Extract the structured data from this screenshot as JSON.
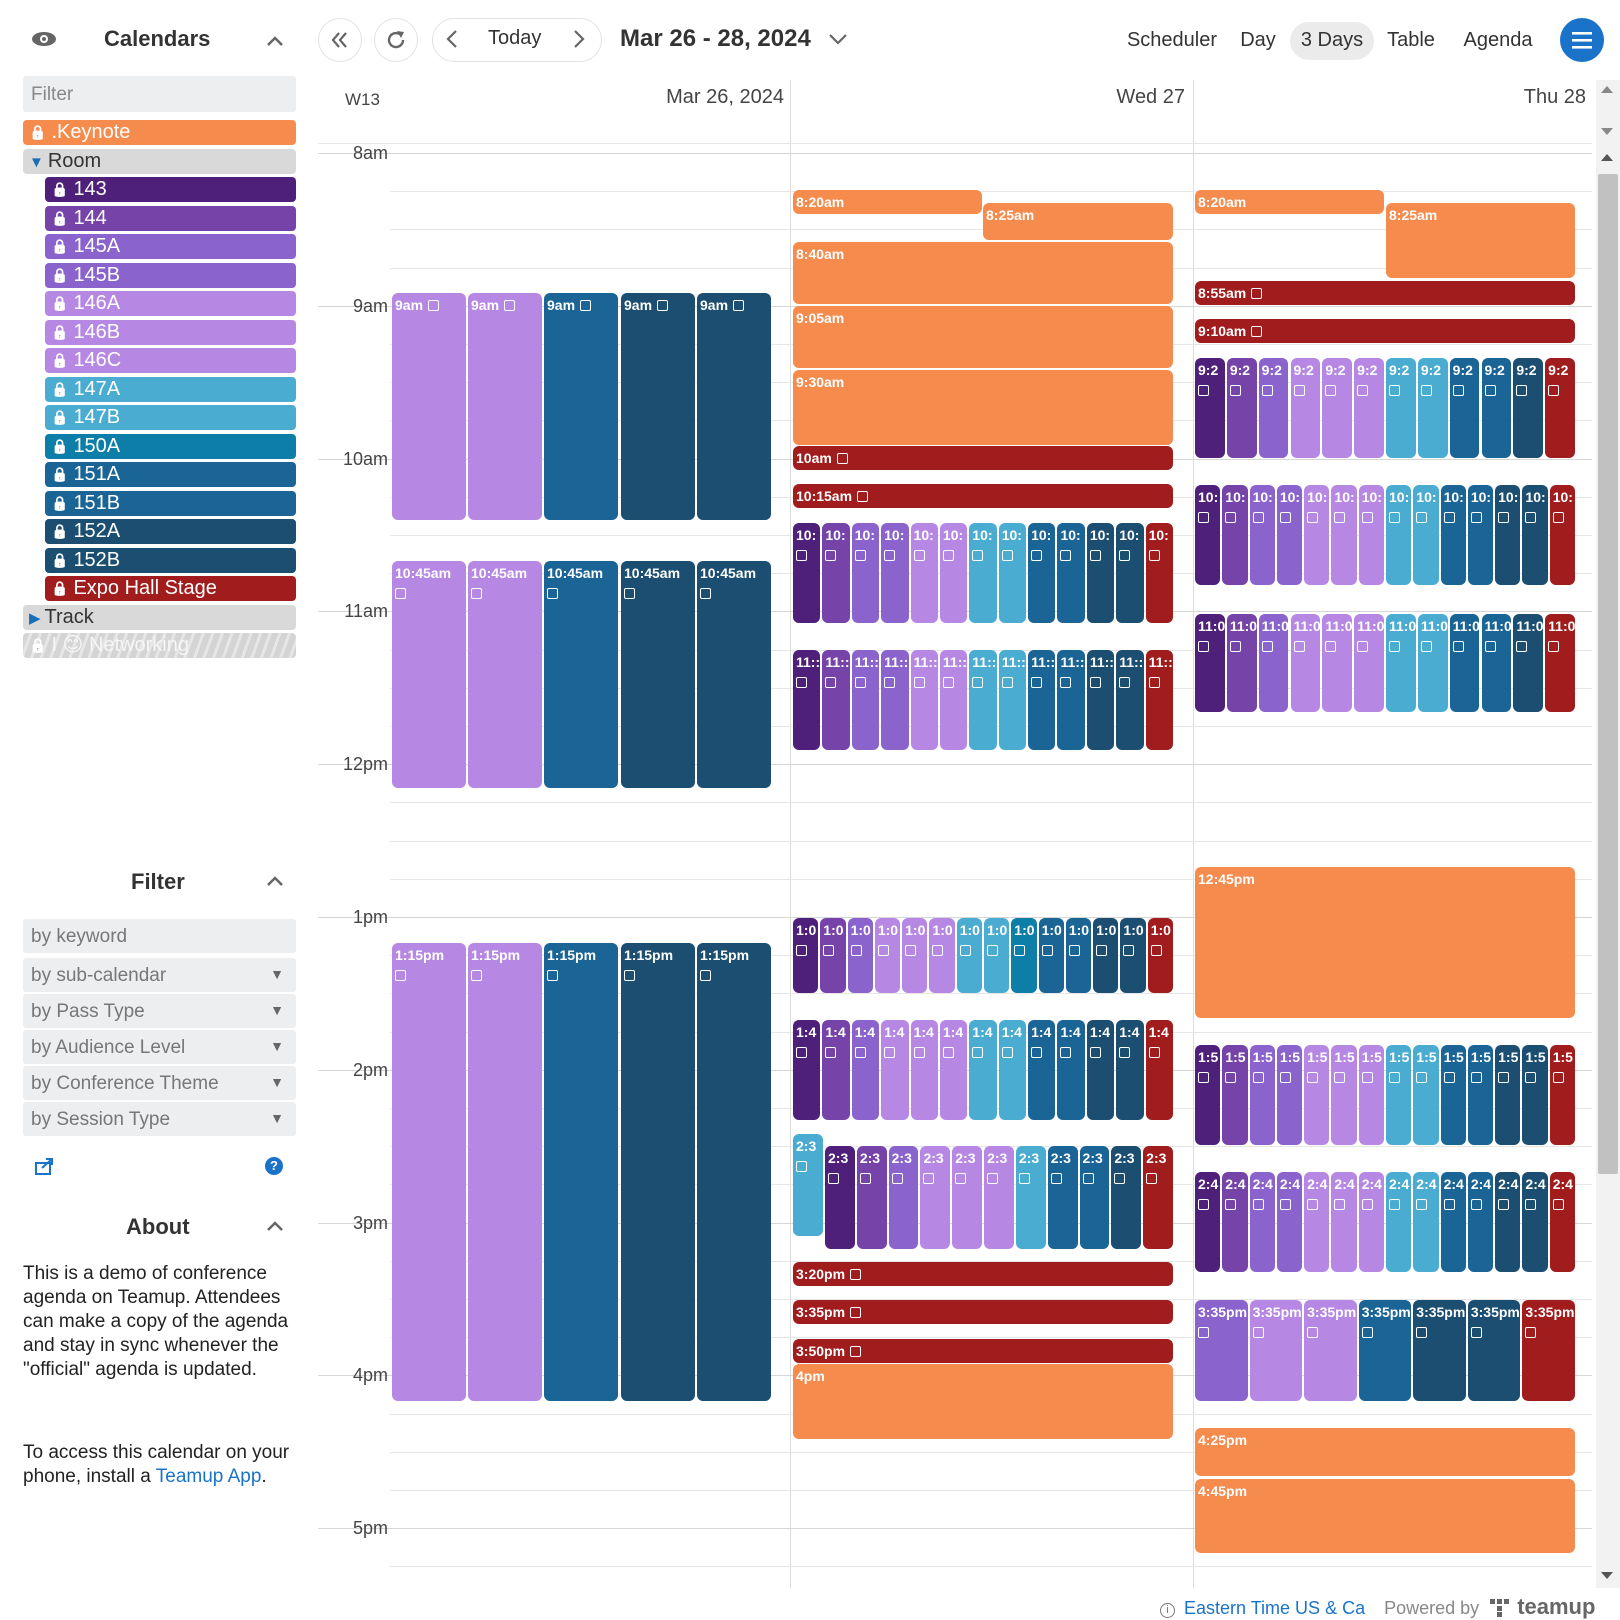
{
  "sidebar": {
    "calendars_title": "Calendars",
    "filter_placeholder": "Filter",
    "calendars": [
      {
        "label": ".Keynote",
        "color": "#f58b4c",
        "indent": 0
      },
      {
        "label": "Room",
        "group": true,
        "expanded": true
      },
      {
        "label": "143",
        "color": "#4f2079",
        "indent": 1
      },
      {
        "label": "144",
        "color": "#7643a9",
        "indent": 1
      },
      {
        "label": "145A",
        "color": "#8a63cc",
        "indent": 1
      },
      {
        "label": "145B",
        "color": "#8a63cc",
        "indent": 1
      },
      {
        "label": "146A",
        "color": "#b688e4",
        "indent": 1
      },
      {
        "label": "146B",
        "color": "#b688e4",
        "indent": 1
      },
      {
        "label": "146C",
        "color": "#b688e4",
        "indent": 1
      },
      {
        "label": "147A",
        "color": "#4aacd0",
        "indent": 1
      },
      {
        "label": "147B",
        "color": "#4aacd0",
        "indent": 1
      },
      {
        "label": "150A",
        "color": "#0d7ea8",
        "indent": 1
      },
      {
        "label": "151A",
        "color": "#1a6596",
        "indent": 1
      },
      {
        "label": "151B",
        "color": "#1a6596",
        "indent": 1
      },
      {
        "label": "152A",
        "color": "#1b4e70",
        "indent": 1
      },
      {
        "label": "152B",
        "color": "#1b4e70",
        "indent": 1
      },
      {
        "label": "Expo Hall Stage",
        "color": "#a11c1c",
        "indent": 1
      },
      {
        "label": "Track",
        "group": true,
        "expanded": false
      },
      {
        "label": "I 😊 Networking",
        "color": "#d4d4d4",
        "indent": 0,
        "disabled": true
      }
    ],
    "filter_title": "Filter",
    "keyword_placeholder": "by keyword",
    "filters": [
      "by sub-calendar",
      "by Pass Type",
      "by Audience Level",
      "by Conference Theme",
      "by Session Type"
    ],
    "about_title": "About",
    "about_p1": "This is a demo of conference agenda on Teamup. Attendees can make a copy of the agenda and stay in sync whenever the \"official\" agenda is updated.",
    "about_p2_prefix": "To access this calendar on your phone, install a",
    "about_link": "Teamup App",
    "about_p2_suffix": "."
  },
  "toolbar": {
    "today": "Today",
    "range": "Mar 26 - 28, 2024",
    "views": [
      "Scheduler",
      "Day",
      "3 Days",
      "Table",
      "Agenda"
    ],
    "active_view": "3 Days",
    "accent": "#1a73c9"
  },
  "grid": {
    "week": "W13",
    "days": [
      "Mar 26, 2024",
      "Wed 27",
      "Thu 28"
    ],
    "hours": [
      "8am",
      "9am",
      "10am",
      "11am",
      "12pm",
      "1pm",
      "2pm",
      "3pm",
      "4pm",
      "5pm"
    ]
  },
  "colors": {
    "orange": "#f58b4c",
    "c143": "#4f2079",
    "c144": "#7643a9",
    "c145": "#8a63cc",
    "c146": "#b688e4",
    "c147": "#4aacd0",
    "c150": "#0d7ea8",
    "c151": "#1a6596",
    "c152": "#1b4e70",
    "red": "#a11c1c"
  },
  "events": {
    "day1": [
      {
        "label": "9am",
        "start": "9:00",
        "end": "10:30",
        "color": "c146",
        "copy": "inline"
      },
      {
        "label": "9am",
        "start": "9:00",
        "end": "10:30",
        "color": "c146",
        "copy": "inline"
      },
      {
        "label": "9am",
        "start": "9:00",
        "end": "10:30",
        "color": "c151",
        "copy": "inline"
      },
      {
        "label": "9am",
        "start": "9:00",
        "end": "10:30",
        "color": "c152",
        "copy": "inline"
      },
      {
        "label": "9am",
        "start": "9:00",
        "end": "10:30",
        "color": "c152",
        "copy": "inline"
      },
      {
        "label": "10:45am",
        "start": "10:45",
        "end": "12:15",
        "color": "c146"
      },
      {
        "label": "10:45am",
        "start": "10:45",
        "end": "12:15",
        "color": "c146"
      },
      {
        "label": "10:45am",
        "start": "10:45",
        "end": "12:15",
        "color": "c151"
      },
      {
        "label": "10:45am",
        "start": "10:45",
        "end": "12:15",
        "color": "c152"
      },
      {
        "label": "10:45am",
        "start": "10:45",
        "end": "12:15",
        "color": "c152"
      },
      {
        "label": "1:15pm",
        "start": "13:15",
        "end": "16:15",
        "color": "c146"
      },
      {
        "label": "1:15pm",
        "start": "13:15",
        "end": "16:15",
        "color": "c146"
      },
      {
        "label": "1:15pm",
        "start": "13:15",
        "end": "16:15",
        "color": "c151"
      },
      {
        "label": "1:15pm",
        "start": "13:15",
        "end": "16:15",
        "color": "c152"
      },
      {
        "label": "1:15pm",
        "start": "13:15",
        "end": "16:15",
        "color": "c152"
      }
    ],
    "day2_singles": [
      {
        "label": "8:20am",
        "color": "orange"
      },
      {
        "label": "8:25am",
        "color": "orange"
      },
      {
        "label": "8:40am",
        "color": "orange"
      },
      {
        "label": "9:05am",
        "color": "orange"
      },
      {
        "label": "9:30am",
        "color": "orange"
      },
      {
        "label": "10am",
        "color": "red",
        "copy": "inline"
      },
      {
        "label": "10:15am",
        "color": "red",
        "copy": "inline"
      },
      {
        "label": "3:20pm",
        "color": "red",
        "copy": "inline"
      },
      {
        "label": "3:35pm",
        "color": "red",
        "copy": "inline"
      },
      {
        "label": "3:50pm",
        "color": "red",
        "copy": "inline"
      },
      {
        "label": "4pm",
        "color": "orange"
      }
    ],
    "day2_blocks": [
      {
        "label": "10:",
        "colors": [
          "c143",
          "c144",
          "c145",
          "c145",
          "c146",
          "c146",
          "c147",
          "c147",
          "c151",
          "c151",
          "c152",
          "c152",
          "red"
        ]
      },
      {
        "label": "11::",
        "colors": [
          "c143",
          "c144",
          "c145",
          "c145",
          "c146",
          "c146",
          "c147",
          "c147",
          "c151",
          "c151",
          "c152",
          "c152",
          "red"
        ]
      },
      {
        "label": "1:0",
        "colors": [
          "c143",
          "c144",
          "c145",
          "c146",
          "c146",
          "c146",
          "c147",
          "c147",
          "c150",
          "c151",
          "c151",
          "c152",
          "c152",
          "red"
        ]
      },
      {
        "label": "1:4",
        "colors": [
          "c143",
          "c144",
          "c145",
          "c146",
          "c146",
          "c146",
          "c147",
          "c147",
          "c151",
          "c151",
          "c152",
          "c152",
          "red"
        ]
      },
      {
        "label": "2:3",
        "colors": [
          "c143",
          "c144",
          "c145",
          "c146",
          "c146",
          "c146",
          "c147",
          "c151",
          "c151",
          "c152",
          "red"
        ]
      }
    ],
    "day2_extra": {
      "label": "2:3",
      "color": "c147"
    },
    "day3_singles": [
      {
        "label": "8:20am",
        "color": "orange"
      },
      {
        "label": "8:25am",
        "color": "orange"
      },
      {
        "label": "8:55am",
        "color": "red",
        "copy": "inline"
      },
      {
        "label": "9:10am",
        "color": "red",
        "copy": "inline"
      },
      {
        "label": "12:45pm",
        "color": "orange"
      },
      {
        "label": "4:25pm",
        "color": "orange"
      },
      {
        "label": "4:45pm",
        "color": "orange"
      }
    ],
    "day3_blocks": [
      {
        "label": "9:2",
        "colors": [
          "c143",
          "c144",
          "c145",
          "c146",
          "c146",
          "c146",
          "c147",
          "c147",
          "c151",
          "c151",
          "c152",
          "red"
        ]
      },
      {
        "label": "10:",
        "colors": [
          "c143",
          "c144",
          "c145",
          "c145",
          "c146",
          "c146",
          "c146",
          "c147",
          "c147",
          "c151",
          "c151",
          "c152",
          "c152",
          "red"
        ]
      },
      {
        "label": "11:0",
        "colors": [
          "c143",
          "c144",
          "c145",
          "c146",
          "c146",
          "c146",
          "c147",
          "c147",
          "c151",
          "c151",
          "c152",
          "red"
        ]
      },
      {
        "label": "1:5",
        "colors": [
          "c143",
          "c144",
          "c145",
          "c145",
          "c146",
          "c146",
          "c146",
          "c147",
          "c147",
          "c151",
          "c151",
          "c152",
          "c152",
          "red"
        ]
      },
      {
        "label": "2:4",
        "colors": [
          "c143",
          "c144",
          "c145",
          "c145",
          "c146",
          "c146",
          "c146",
          "c147",
          "c147",
          "c151",
          "c151",
          "c152",
          "c152",
          "red"
        ]
      },
      {
        "label": "3:35pm",
        "colors": [
          "c145",
          "c146",
          "c146",
          "c151",
          "c152",
          "c152",
          "red"
        ]
      }
    ]
  },
  "footer": {
    "timezone": "Eastern Time US & Ca",
    "powered": "Powered by",
    "brand": "teamup"
  }
}
